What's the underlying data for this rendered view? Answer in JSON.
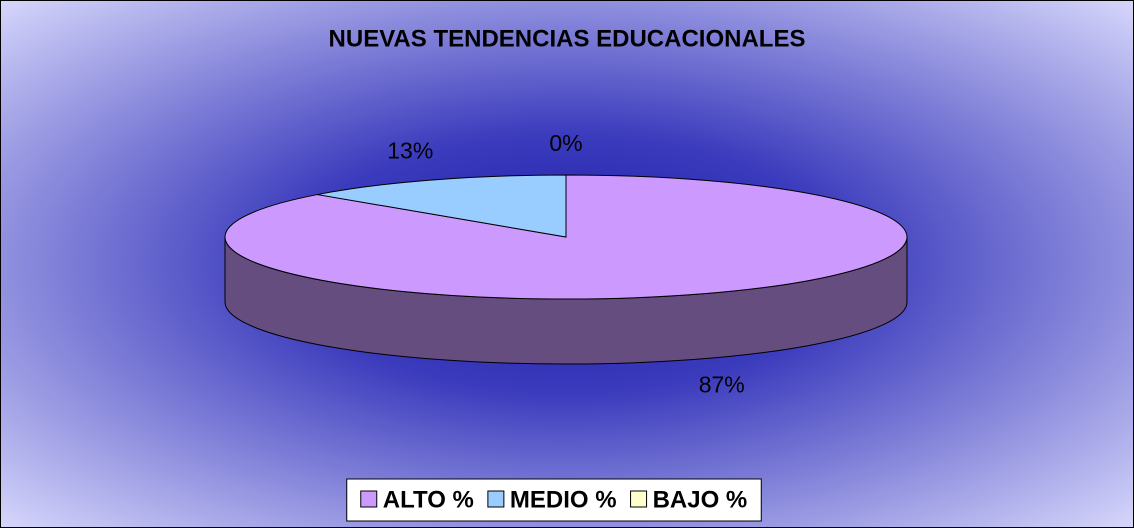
{
  "chart_data": {
    "type": "pie3d",
    "title": "NUEVAS TENDENCIAS EDUCACIONALES",
    "categories": [
      "ALTO %",
      "MEDIO %",
      "BAJO %"
    ],
    "values": [
      87,
      13,
      0
    ],
    "value_labels": [
      "87%",
      "13%",
      "0%"
    ],
    "colors": [
      "#cc99ff",
      "#99ccff",
      "#ffffcc"
    ],
    "legend": "bottom"
  }
}
